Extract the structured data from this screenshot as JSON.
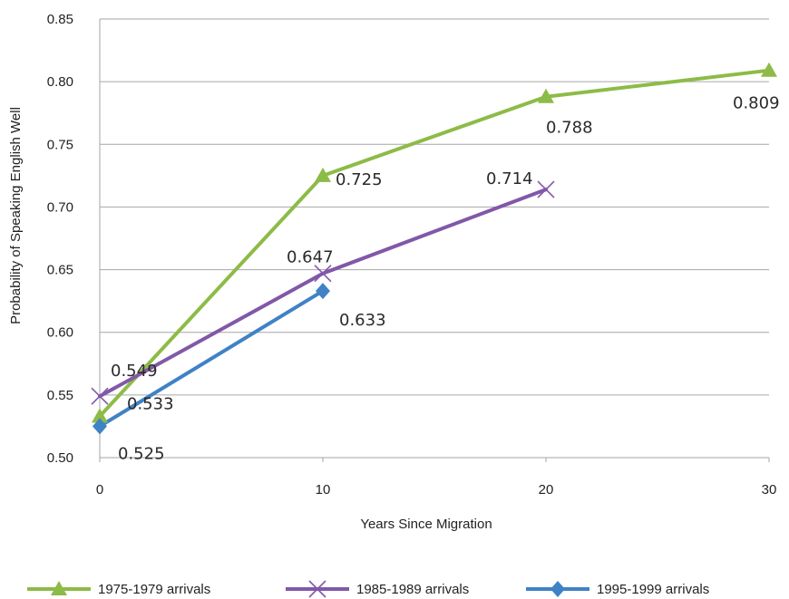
{
  "chart_data": {
    "type": "line",
    "x": [
      0,
      10,
      20,
      30
    ],
    "xlabel": "Years Since Migration",
    "ylabel": "Probability of Speaking English Well",
    "ylim": [
      0.5,
      0.85
    ],
    "xlim": [
      0,
      30
    ],
    "y_ticks": [
      "0.50",
      "0.55",
      "0.60",
      "0.65",
      "0.70",
      "0.75",
      "0.80",
      "0.85"
    ],
    "x_ticks": [
      "0",
      "10",
      "20",
      "30"
    ],
    "grid": "horizontal",
    "legend_position": "bottom",
    "series": [
      {
        "name": "1975-1979 arrivals",
        "marker": "triangle",
        "color": "#8DBB47",
        "points": [
          {
            "x": 0,
            "y": 0.533,
            "label": "0.533"
          },
          {
            "x": 10,
            "y": 0.725,
            "label": "0.725"
          },
          {
            "x": 20,
            "y": 0.788,
            "label": "0.788"
          },
          {
            "x": 30,
            "y": 0.809,
            "label": "0.809"
          }
        ]
      },
      {
        "name": "1985-1989 arrivals",
        "marker": "cross",
        "color": "#8158A8",
        "points": [
          {
            "x": 0,
            "y": 0.549,
            "label": "0.549"
          },
          {
            "x": 10,
            "y": 0.647,
            "label": "0.647"
          },
          {
            "x": 20,
            "y": 0.714,
            "label": "0.714"
          }
        ]
      },
      {
        "name": "1995-1999 arrivals",
        "marker": "diamond",
        "color": "#3F82C6",
        "points": [
          {
            "x": 0,
            "y": 0.525,
            "label": "0.525"
          },
          {
            "x": 10,
            "y": 0.633,
            "label": "0.633"
          }
        ]
      }
    ]
  }
}
